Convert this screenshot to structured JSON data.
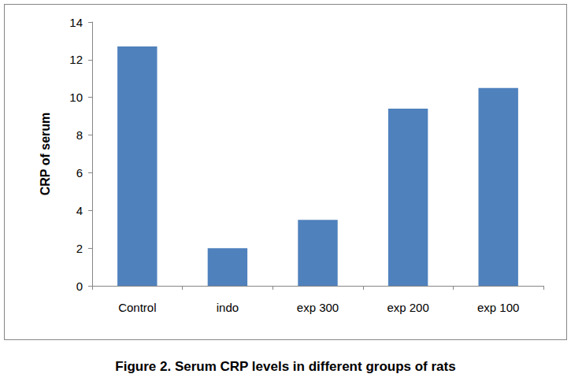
{
  "chart_data": {
    "type": "bar",
    "title": "Figure 2. Serum CRP levels in different groups of rats",
    "y_label": "CRP of serum",
    "categories": [
      "Control",
      "indo",
      "exp 300",
      "exp 200",
      "exp 100"
    ],
    "values": [
      12.7,
      2.0,
      3.5,
      9.4,
      10.5
    ],
    "color": "#4f81bd",
    "ylim": [
      0,
      14
    ],
    "yticks": [
      0,
      2,
      4,
      6,
      8,
      10,
      12,
      14
    ],
    "grid": false
  }
}
